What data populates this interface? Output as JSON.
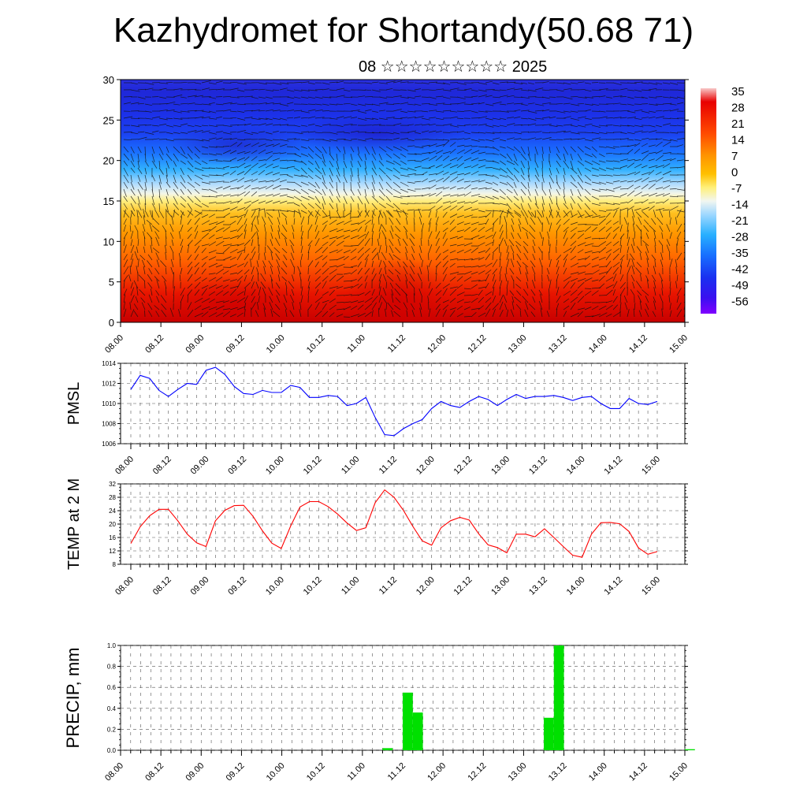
{
  "title": "Kazhydromet for Shortandy(50.68 71)",
  "subtitle": "08 ☆☆☆☆☆☆☆☆☆ 2025",
  "chart_data": [
    {
      "type": "heatmap",
      "ylim": [
        0,
        30
      ],
      "y_ticks": [
        "0",
        "5",
        "10",
        "15",
        "20",
        "25",
        "30"
      ],
      "x_ticks": [
        "08.00",
        "08.12",
        "09.00",
        "09.12",
        "10.00",
        "10.12",
        "11.00",
        "11.12",
        "12.00",
        "12.12",
        "13.00",
        "13.12",
        "14.00",
        "14.12",
        "15.00"
      ],
      "colorbar_labels": [
        "35",
        "28",
        "21",
        "14",
        "7",
        "0",
        "-7",
        "-14",
        "-21",
        "-28",
        "-35",
        "-42",
        "-49",
        "-56"
      ],
      "colorbar_colors": [
        "#f7b6b6",
        "#e80000",
        "#ff5a00",
        "#ff9a00",
        "#ffc000",
        "#ffe76a",
        "#fff7c0",
        "#d8f0ff",
        "#33c0ff",
        "#1780ff",
        "#1a40ff",
        "#2a10f0",
        "#6010ff",
        "#8000ff"
      ],
      "has_wind_vectors": true
    },
    {
      "type": "line",
      "ylabel": "PMSL",
      "ylim": [
        1006,
        1014
      ],
      "y_ticks": [
        "1006",
        "1008",
        "1010",
        "1012",
        "1014"
      ],
      "x_ticks": [
        "08.00",
        "08.12",
        "09.00",
        "09.12",
        "10.00",
        "10.12",
        "11.00",
        "11.12",
        "12.00",
        "12.12",
        "13.00",
        "13.12",
        "14.00",
        "14.12",
        "15.00"
      ],
      "x_hours": [
        0,
        3,
        6,
        9,
        12,
        15,
        18,
        21,
        24,
        27,
        30,
        33,
        36,
        39,
        42,
        45,
        48,
        51,
        54,
        57,
        60,
        63,
        66,
        69,
        72,
        75,
        78,
        81,
        84,
        87,
        90,
        93,
        96,
        99,
        102,
        105,
        108,
        111,
        114,
        117,
        120,
        123,
        126,
        129,
        132,
        135,
        138,
        141,
        144,
        147,
        150,
        153,
        156,
        159,
        162,
        165,
        168
      ],
      "values": [
        1011.4,
        1012.8,
        1012.5,
        1011.3,
        1010.7,
        1011.4,
        1012.0,
        1011.9,
        1013.3,
        1013.6,
        1012.9,
        1011.7,
        1011.0,
        1010.9,
        1011.3,
        1011.1,
        1011.1,
        1011.8,
        1011.6,
        1010.6,
        1010.6,
        1010.8,
        1010.7,
        1009.8,
        1010.0,
        1010.6,
        1008.6,
        1006.9,
        1006.8,
        1007.5,
        1008.0,
        1008.4,
        1009.5,
        1010.2,
        1009.8,
        1009.6,
        1010.2,
        1010.7,
        1010.4,
        1009.8,
        1010.4,
        1010.9,
        1010.5,
        1010.7,
        1010.7,
        1010.8,
        1010.6,
        1010.3,
        1010.6,
        1010.7,
        1010.0,
        1009.5,
        1009.5,
        1010.5,
        1010.0,
        1009.9,
        1010.2
      ],
      "color": "#0000ff"
    },
    {
      "type": "line",
      "ylabel": "TEMP at 2 M",
      "ylim": [
        8,
        32
      ],
      "y_ticks": [
        "8",
        "12",
        "16",
        "20",
        "24",
        "28",
        "32"
      ],
      "x_ticks": [
        "08.00",
        "08.12",
        "09.00",
        "09.12",
        "10.00",
        "10.12",
        "11.00",
        "11.12",
        "12.00",
        "12.12",
        "13.00",
        "13.12",
        "14.00",
        "14.12",
        "15.00"
      ],
      "x_hours": [
        0,
        3,
        6,
        9,
        12,
        15,
        18,
        21,
        24,
        27,
        30,
        33,
        36,
        39,
        42,
        45,
        48,
        51,
        54,
        57,
        60,
        63,
        66,
        69,
        72,
        75,
        78,
        81,
        84,
        87,
        90,
        93,
        96,
        99,
        102,
        105,
        108,
        111,
        114,
        117,
        120,
        123,
        126,
        129,
        132,
        135,
        138,
        141,
        144,
        147,
        150,
        153,
        156,
        159,
        162,
        165,
        168
      ],
      "values": [
        14.2,
        19.2,
        22.5,
        24.4,
        24.4,
        21.0,
        17.0,
        14.4,
        13.3,
        21.0,
        24.1,
        25.5,
        25.6,
        22.3,
        18.0,
        14.3,
        12.7,
        19.4,
        25.1,
        26.7,
        26.7,
        25.2,
        23.0,
        20.3,
        18.1,
        18.9,
        26.4,
        30.2,
        28.0,
        24.1,
        19.3,
        15.0,
        13.7,
        18.9,
        21.0,
        22.0,
        21.2,
        17.1,
        13.8,
        13.0,
        11.4,
        17.0,
        17.0,
        16.2,
        18.6,
        16.0,
        13.3,
        10.7,
        10.1,
        17.0,
        20.4,
        20.5,
        20.1,
        17.8,
        12.9,
        11.0,
        11.8
      ],
      "color": "#ff0000"
    },
    {
      "type": "bar",
      "ylabel": "PRECIP, mm",
      "ylim": [
        0,
        1.0
      ],
      "y_ticks": [
        "0.0",
        "0.2",
        "0.4",
        "0.6",
        "0.8",
        "1.0"
      ],
      "x_ticks": [
        "08.00",
        "08.12",
        "09.00",
        "09.12",
        "10.00",
        "10.12",
        "11.00",
        "11.12",
        "12.00",
        "12.12",
        "13.00",
        "13.12",
        "14.00",
        "14.12",
        "15.00"
      ],
      "bars": [
        {
          "hour": 78,
          "value": 0.02
        },
        {
          "hour": 84,
          "value": 0.55
        },
        {
          "hour": 87,
          "value": 0.36
        },
        {
          "hour": 126,
          "value": 0.31
        },
        {
          "hour": 129,
          "value": 1.0
        },
        {
          "hour": 168,
          "value": 0.01
        }
      ],
      "color": "#00e000"
    }
  ]
}
